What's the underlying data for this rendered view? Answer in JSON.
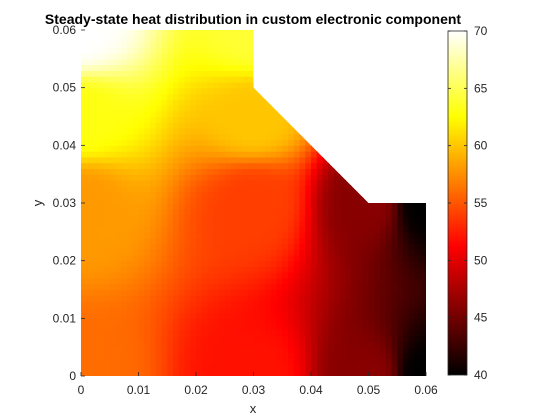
{
  "chart_data": {
    "type": "heatmap",
    "title": "Steady-state heat distribution in custom electronic component",
    "xlabel": "x",
    "ylabel": "y",
    "xlim": [
      0,
      0.06
    ],
    "ylim": [
      0,
      0.06
    ],
    "x_ticks": [
      "0",
      "0.01",
      "0.02",
      "0.03",
      "0.04",
      "0.05",
      "0.06"
    ],
    "y_ticks": [
      "0",
      "0.01",
      "0.02",
      "0.03",
      "0.04",
      "0.05",
      "0.06"
    ],
    "domain_boundary": [
      [
        0,
        0
      ],
      [
        0.06,
        0
      ],
      [
        0.06,
        0.03
      ],
      [
        0.05,
        0.03
      ],
      [
        0.03,
        0.05
      ],
      [
        0.03,
        0.06
      ],
      [
        0,
        0.06
      ]
    ],
    "temperature_samples": [
      {
        "x": 0.0,
        "y": 0.06,
        "value": 70
      },
      {
        "x": 0.0,
        "y": 0.045,
        "value": 63
      },
      {
        "x": 0.0,
        "y": 0.03,
        "value": 58
      },
      {
        "x": 0.0,
        "y": 0.0,
        "value": 56
      },
      {
        "x": 0.03,
        "y": 0.06,
        "value": 64
      },
      {
        "x": 0.03,
        "y": 0.045,
        "value": 60
      },
      {
        "x": 0.03,
        "y": 0.03,
        "value": 54
      },
      {
        "x": 0.03,
        "y": 0.0,
        "value": 52
      },
      {
        "x": 0.05,
        "y": 0.03,
        "value": 46
      },
      {
        "x": 0.05,
        "y": 0.0,
        "value": 46
      },
      {
        "x": 0.06,
        "y": 0.03,
        "value": 40
      },
      {
        "x": 0.06,
        "y": 0.0,
        "value": 40
      }
    ],
    "colormap": "hot",
    "colorbar": {
      "range": [
        40,
        70
      ],
      "ticks": [
        "40",
        "45",
        "50",
        "55",
        "60",
        "65",
        "70"
      ]
    }
  }
}
